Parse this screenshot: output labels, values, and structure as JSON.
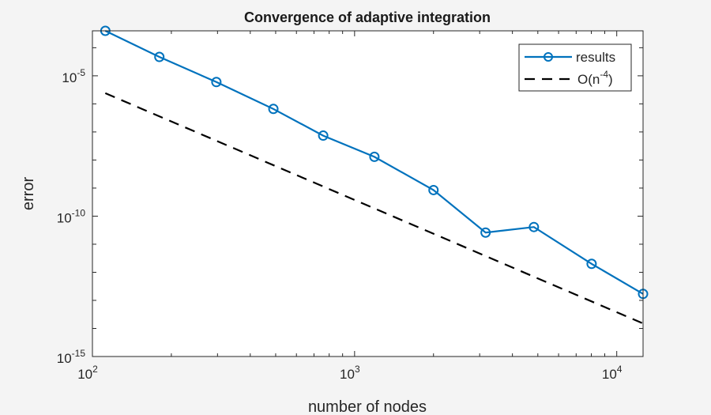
{
  "chart_data": {
    "type": "line",
    "title": "Convergence of adaptive integration",
    "xlabel": "number of nodes",
    "ylabel": "error",
    "xscale": "log",
    "yscale": "log",
    "xlim": [
      100,
      12600
    ],
    "ylim": [
      1e-15,
      0.0004
    ],
    "grid": false,
    "legend_position": "top-right",
    "x_ticks": [
      {
        "base": "10",
        "exp": "2",
        "value": 100
      },
      {
        "base": "10",
        "exp": "3",
        "value": 1000
      },
      {
        "base": "10",
        "exp": "4",
        "value": 10000
      }
    ],
    "y_ticks": [
      {
        "base": "10",
        "exp": "-5",
        "value": 1e-05
      },
      {
        "base": "10",
        "exp": "-10",
        "value": 1e-10
      },
      {
        "base": "10",
        "exp": "-15",
        "value": 1e-15
      }
    ],
    "series": [
      {
        "name": "results",
        "color": "#0072BD",
        "style": "solid",
        "marker": "circle",
        "x": [
          112,
          180,
          297,
          490,
          759,
          1190,
          2000,
          3160,
          4830,
          8020,
          12600
        ],
        "y": [
          0.0004,
          4.7e-05,
          6e-06,
          6.6e-07,
          7.4e-08,
          1.3e-08,
          8.5e-10,
          2.6e-11,
          4.1e-11,
          2e-12,
          1.7e-13
        ]
      },
      {
        "name": "O(n^-4)",
        "label_base": "O(n",
        "label_exp": "-4",
        "label_end": ")",
        "color": "#000000",
        "style": "dashed",
        "marker": "none",
        "x": [
          112,
          12600
        ],
        "y": [
          2.4e-06,
          1.5e-14
        ]
      }
    ]
  }
}
